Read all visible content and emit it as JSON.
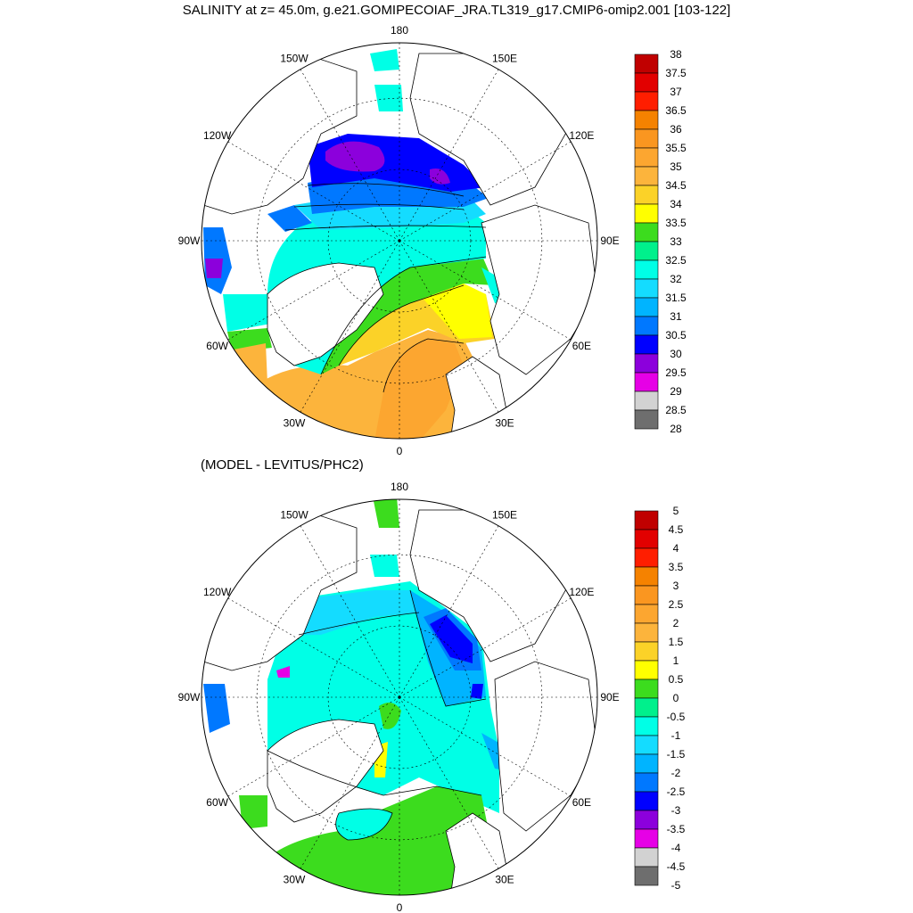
{
  "title": "SALINITY at z=  45.0m, g.e21.GOMIPECOIAF_JRA.TL319_g17.CMIP6-omip2.001 [103-122]",
  "subtitle": "(MODEL - LEVITUS/PHC2)",
  "longitude_labels": [
    {
      "text": "180",
      "deg": 180
    },
    {
      "text": "150E",
      "deg": 150
    },
    {
      "text": "120E",
      "deg": 120
    },
    {
      "text": "90E",
      "deg": 90
    },
    {
      "text": "60E",
      "deg": 60
    },
    {
      "text": "30E",
      "deg": 30
    },
    {
      "text": "0",
      "deg": 0
    },
    {
      "text": "30W",
      "deg": -30
    },
    {
      "text": "60W",
      "deg": -60
    },
    {
      "text": "90W",
      "deg": -90
    },
    {
      "text": "120W",
      "deg": -120
    },
    {
      "text": "150W",
      "deg": -150
    }
  ],
  "panels": [
    {
      "name": "salinity",
      "colorbar": {
        "levels": [
          "38",
          "37.5",
          "37",
          "36.5",
          "36",
          "35.5",
          "35",
          "34.5",
          "34",
          "33.5",
          "33",
          "32.5",
          "32",
          "31.5",
          "31",
          "30.5",
          "30",
          "29.5",
          "29",
          "28.5",
          "28"
        ],
        "colors": [
          "#c00000",
          "#e20000",
          "#ff1e00",
          "#f58200",
          "#fa9620",
          "#fca630",
          "#fcb43c",
          "#fbd228",
          "#ffff00",
          "#3cdc1e",
          "#00f08c",
          "#00ffe6",
          "#14dcff",
          "#00b4ff",
          "#0078ff",
          "#0000ff",
          "#8c00dc",
          "#e600e6",
          "#d2d2d2",
          "#6e6e6e"
        ]
      }
    },
    {
      "name": "difference",
      "colorbar": {
        "levels": [
          "5",
          "4.5",
          "4",
          "3.5",
          "3",
          "2.5",
          "2",
          "1.5",
          "1",
          "0.5",
          "0",
          "-0.5",
          "-1",
          "-1.5",
          "-2",
          "-2.5",
          "-3",
          "-3.5",
          "-4",
          "-4.5",
          "-5"
        ],
        "colors": [
          "#c00000",
          "#e20000",
          "#ff1e00",
          "#f58200",
          "#fa9620",
          "#fca630",
          "#fcb43c",
          "#fbd228",
          "#ffff00",
          "#3cdc1e",
          "#00f08c",
          "#00ffe6",
          "#14dcff",
          "#00b4ff",
          "#0078ff",
          "#0000ff",
          "#8c00dc",
          "#e600e6",
          "#d2d2d2",
          "#6e6e6e"
        ]
      }
    }
  ]
}
